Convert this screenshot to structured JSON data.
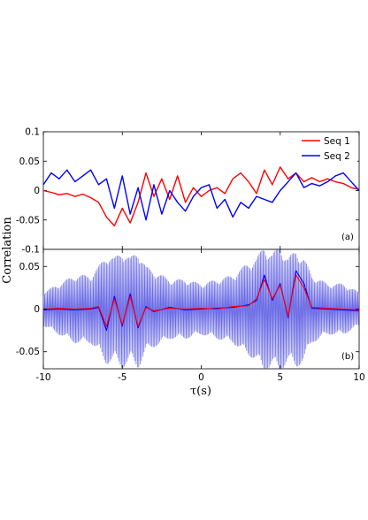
{
  "chart_data": {
    "type": "line",
    "xlabel": "τ(s)",
    "ylabel": "Correlation",
    "xlim": [
      -10,
      10
    ],
    "xticks": [
      "-10",
      "-5",
      "0",
      "5",
      "10"
    ],
    "panels": [
      {
        "label": "(a)",
        "ylim": [
          -0.1,
          0.1
        ],
        "yticks": [
          "-0.1",
          "-0.05",
          "0",
          "0.05",
          "0.1"
        ],
        "legend_position": "top-right",
        "series": [
          {
            "name": "Seq 1",
            "color": "#ff0000",
            "x": [
              -10,
              -9.5,
              -9,
              -8.5,
              -8,
              -7.5,
              -7,
              -6.5,
              -6,
              -5.5,
              -5,
              -4.5,
              -4,
              -3.5,
              -3,
              -2.5,
              -2,
              -1.5,
              -1,
              -0.5,
              0,
              0.5,
              1,
              1.5,
              2,
              2.5,
              3,
              3.5,
              4,
              4.5,
              5,
              5.5,
              6,
              6.5,
              7,
              7.5,
              8,
              8.5,
              9,
              9.5,
              10
            ],
            "y": [
              0.0,
              -0.003,
              -0.007,
              -0.005,
              -0.01,
              -0.006,
              -0.012,
              -0.02,
              -0.045,
              -0.06,
              -0.03,
              -0.055,
              -0.02,
              0.03,
              -0.01,
              0.02,
              -0.015,
              0.025,
              -0.02,
              0.005,
              -0.01,
              0.0,
              0.005,
              -0.005,
              0.02,
              0.03,
              0.015,
              -0.005,
              0.035,
              0.01,
              0.04,
              0.02,
              0.03,
              0.015,
              0.022,
              0.015,
              0.02,
              0.015,
              0.012,
              0.005,
              0.002
            ]
          },
          {
            "name": "Seq 2",
            "color": "#0000ff",
            "x": [
              -10,
              -9.5,
              -9,
              -8.5,
              -8,
              -7.5,
              -7,
              -6.5,
              -6,
              -5.5,
              -5,
              -4.5,
              -4,
              -3.5,
              -3,
              -2.5,
              -2,
              -1.5,
              -1,
              -0.5,
              0,
              0.5,
              1,
              1.5,
              2,
              2.5,
              3,
              3.5,
              4,
              4.5,
              5,
              5.5,
              6,
              6.5,
              7,
              7.5,
              8,
              8.5,
              9,
              9.5,
              10
            ],
            "y": [
              0.01,
              0.03,
              0.02,
              0.035,
              0.015,
              0.025,
              0.035,
              0.01,
              0.02,
              -0.03,
              0.025,
              -0.04,
              0.005,
              -0.05,
              0.01,
              -0.04,
              0.0,
              -0.02,
              -0.035,
              -0.01,
              0.005,
              0.01,
              -0.03,
              -0.015,
              -0.045,
              -0.02,
              -0.03,
              -0.01,
              -0.015,
              -0.02,
              0.0,
              0.015,
              0.03,
              0.005,
              0.012,
              0.008,
              0.015,
              0.025,
              0.03,
              0.015,
              0.0
            ]
          }
        ]
      },
      {
        "label": "(b)",
        "ylim": [
          -0.07,
          0.07
        ],
        "yticks": [
          "-0.05",
          "0",
          "0.05"
        ],
        "series": [
          {
            "name": "",
            "color": "#0000ff",
            "x": [
              -10,
              -9,
              -8,
              -7,
              -6.5,
              -6,
              -5.5,
              -5,
              -4.5,
              -4,
              -3.5,
              -3,
              -2,
              -1,
              0,
              1,
              2,
              3,
              3.5,
              4,
              4.5,
              5,
              5.5,
              6,
              6.5,
              7,
              8,
              9,
              10
            ],
            "y": [
              -0.001,
              0.0,
              -0.001,
              0.0,
              0.002,
              -0.025,
              0.015,
              -0.02,
              0.018,
              -0.022,
              0.003,
              -0.003,
              0.002,
              -0.001,
              0.0,
              0.001,
              0.002,
              0.005,
              0.01,
              0.04,
              0.01,
              0.03,
              -0.01,
              0.045,
              0.03,
              0.001,
              0.0,
              -0.001,
              -0.002
            ]
          },
          {
            "name": "",
            "color": "#ff0000",
            "x": [
              -10,
              -9,
              -8,
              -7,
              -6.5,
              -6,
              -5.5,
              -5,
              -4.5,
              -4,
              -3.5,
              -3,
              -2,
              -1,
              0,
              1,
              2,
              3,
              3.5,
              4,
              4.5,
              5,
              5.5,
              6,
              6.5,
              7,
              8,
              9,
              10
            ],
            "y": [
              0.0,
              0.001,
              0.0,
              0.001,
              0.003,
              -0.02,
              0.012,
              -0.018,
              0.015,
              -0.02,
              0.002,
              -0.002,
              0.001,
              0.0,
              0.001,
              0.0,
              0.003,
              0.004,
              0.012,
              0.035,
              0.012,
              0.028,
              -0.008,
              0.04,
              0.025,
              0.002,
              0.001,
              0.0,
              -0.001
            ]
          }
        ],
        "envelope": {
          "color": "#5050e0",
          "x": [
            -10,
            -9,
            -8,
            -7,
            -6.5,
            -6,
            -5.5,
            -5,
            -4.5,
            -4,
            -3.5,
            -3,
            -2,
            -1,
            0,
            1,
            2,
            3,
            3.5,
            4,
            4.5,
            5,
            5.5,
            6,
            6.5,
            7,
            8,
            9,
            10
          ],
          "amp": [
            0.02,
            0.03,
            0.04,
            0.04,
            0.05,
            0.065,
            0.06,
            0.07,
            0.06,
            0.07,
            0.05,
            0.045,
            0.035,
            0.035,
            0.03,
            0.035,
            0.04,
            0.055,
            0.06,
            0.075,
            0.065,
            0.075,
            0.06,
            0.07,
            0.06,
            0.04,
            0.03,
            0.03,
            0.02
          ]
        }
      }
    ]
  }
}
